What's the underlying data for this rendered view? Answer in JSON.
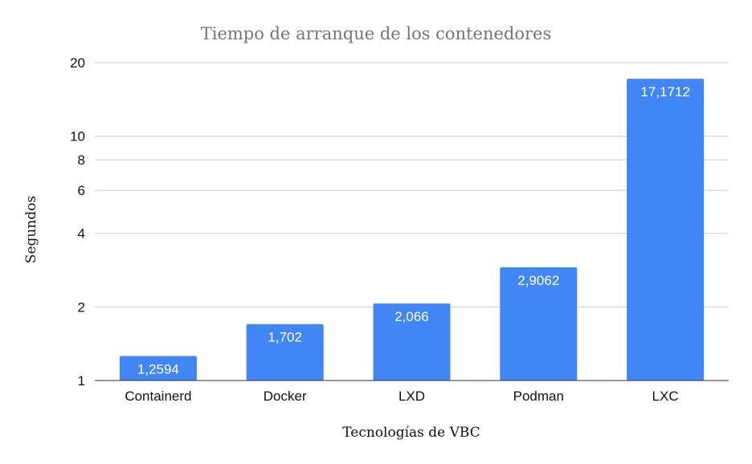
{
  "chart_data": {
    "type": "bar",
    "title": "Tiempo de arranque de los contenedores",
    "xlabel": "Tecnologías de VBC",
    "ylabel": "Segundos",
    "y_scale": "log",
    "ylim": [
      1,
      20
    ],
    "y_ticks": [
      1,
      2,
      4,
      6,
      8,
      10,
      20
    ],
    "y_tick_labels": [
      "1",
      "2",
      "4",
      "6",
      "8",
      "10",
      "20"
    ],
    "grid": true,
    "legend": "none",
    "categories": [
      "Containerd",
      "Docker",
      "LXD",
      "Podman",
      "LXC"
    ],
    "values": [
      1.2594,
      1.702,
      2.066,
      2.9062,
      17.1712
    ],
    "data_labels": [
      "1,2594",
      "1,702",
      "2,066",
      "2,9062",
      "17,1712"
    ],
    "bar_color": "#4285f4"
  }
}
